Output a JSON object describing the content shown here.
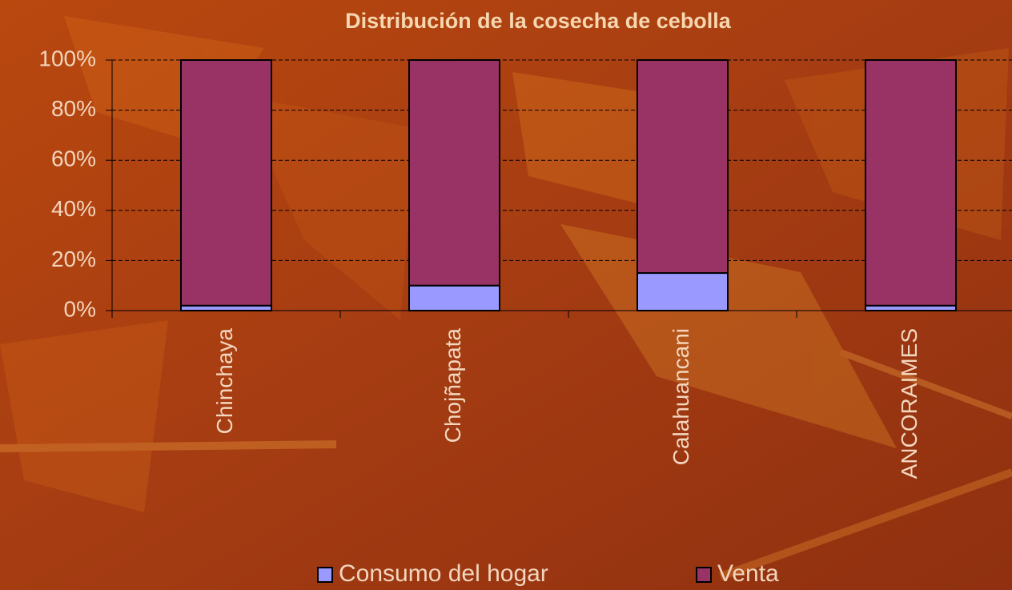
{
  "chart_data": {
    "type": "stacked_bar",
    "title": "Distribución de la cosecha de cebolla",
    "categories": [
      "Chinchaya",
      "Chojñapata",
      "Calahuancani",
      "ANCORAIMES"
    ],
    "series": [
      {
        "name": "Consumo del hogar",
        "color": "#9999ff",
        "values": [
          2,
          10,
          15,
          2
        ]
      },
      {
        "name": "Venta",
        "color": "#993366",
        "values": [
          98,
          90,
          85,
          98
        ]
      }
    ],
    "ylim": [
      0,
      100
    ],
    "yticks": [
      {
        "value": 0,
        "label": "0%"
      },
      {
        "value": 20,
        "label": "20%"
      },
      {
        "value": 40,
        "label": "40%"
      },
      {
        "value": 60,
        "label": "60%"
      },
      {
        "value": 80,
        "label": "80%"
      },
      {
        "value": 100,
        "label": "100%"
      }
    ],
    "grid": true,
    "legend": "bottom"
  }
}
